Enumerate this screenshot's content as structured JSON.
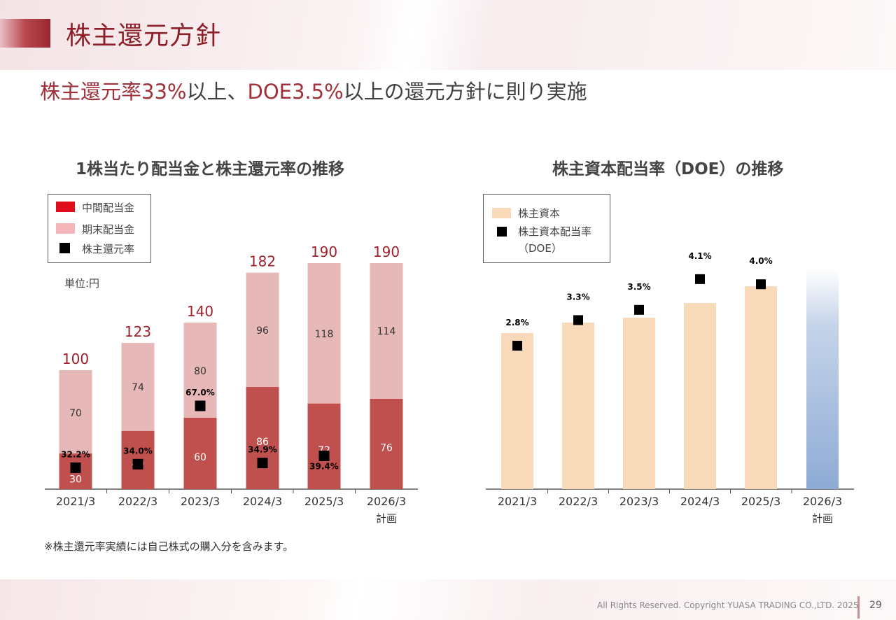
{
  "page": {
    "title": "株主還元方針",
    "subtitle_parts": [
      "株主還元率",
      "33%",
      "以上、",
      "DOE3.5%",
      "以上の還元方針に則り実施"
    ],
    "footnote": "※株主還元率実績には自己株式の購入分を含みます。",
    "copyright": "All Rights Reserved. Copyright  YUASA TRADING CO.,LTD. 2025",
    "page_number": "29"
  },
  "chart_data": [
    {
      "type": "bar",
      "stacked": true,
      "title": "1株当たり配当金と株主還元率の推移",
      "unit": "単位:円",
      "categories": [
        "2021/3",
        "2022/3",
        "2023/3",
        "2024/3",
        "2025/3",
        "2026/3"
      ],
      "category_sublabels": [
        "",
        "",
        "",
        "",
        "",
        "計画"
      ],
      "series": [
        {
          "name": "中間配当金",
          "values": [
            30,
            49,
            60,
            86,
            72,
            76
          ],
          "color": "#c0504d"
        },
        {
          "name": "期末配当金",
          "values": [
            70,
            74,
            80,
            96,
            118,
            114
          ],
          "color": "#e6b8b7"
        }
      ],
      "totals": [
        100,
        123,
        140,
        182,
        190,
        190
      ],
      "total_color": "#a0202a",
      "markers": {
        "name": "株主還元率",
        "values": [
          "32.2%",
          "34.0%",
          "67.0%",
          "34.9%",
          "39.4%",
          null
        ],
        "marker_plot_value": [
          18,
          21,
          70,
          22,
          28,
          null
        ],
        "color": "#000000"
      },
      "ylim": [
        0,
        195
      ],
      "legend_placement": "top-left"
    },
    {
      "type": "bar",
      "title": "株主資本配当率（DOE）の推移",
      "categories": [
        "2021/3",
        "2022/3",
        "2023/3",
        "2024/3",
        "2025/3",
        "2026/3"
      ],
      "category_sublabels": [
        "",
        "",
        "",
        "",
        "",
        "計画"
      ],
      "bar_series": {
        "name": "株主資本",
        "color": "#f8d9b9",
        "plan_color": "#8eabd5"
      },
      "marker_series": {
        "name": "株主資本配当率",
        "name_line2": "（DOE）",
        "color": "#000000"
      },
      "doe_values": [
        2.8,
        3.3,
        3.5,
        4.1,
        4.0,
        null
      ],
      "doe_labels": [
        "2.8%",
        "3.3%",
        "3.5%",
        "4.1%",
        "4.0%",
        ""
      ],
      "ylim": [
        0,
        4.6
      ],
      "legend_placement": "top-left"
    }
  ]
}
